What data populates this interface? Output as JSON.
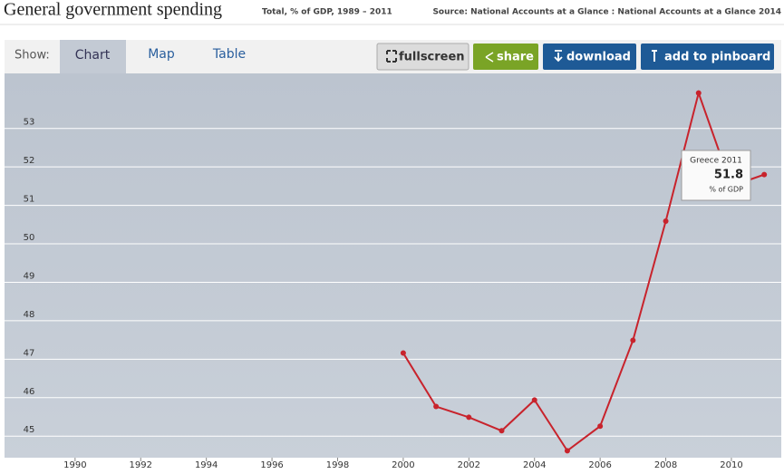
{
  "header": {
    "title": "General government spending",
    "subtitle": "Total, % of GDP, 1989 – 2011",
    "source": "Source: National Accounts at a Glance : National Accounts at a Glance 2014"
  },
  "tabs": {
    "label": "Show:",
    "items": [
      "Chart",
      "Map",
      "Table"
    ]
  },
  "buttons": [
    "fullscreen",
    "share",
    "download",
    "add to pinboard"
  ],
  "tooltip": {
    "label": "Greece 2011",
    "unit": "% of GDP"
  },
  "chart_data": {
    "type": "line",
    "color": "#c8232c",
    "x": [
      2000,
      2001,
      2002,
      2003,
      2004,
      2005,
      2006,
      2007,
      2008,
      2009,
      2010,
      2011
    ],
    "values": [
      47.16,
      45.77,
      45.49,
      45.14,
      45.94,
      44.62,
      45.26,
      47.49,
      50.59,
      53.92,
      51.5,
      51.8
    ],
    "xlim": [
      1987.85,
      2011.52
    ],
    "xticks": [
      1990,
      1992,
      1994,
      1996,
      1998,
      2000,
      2002,
      2004,
      2006,
      2008,
      2010
    ],
    "ylim": [
      44.44,
      54.43
    ],
    "yticks": [
      45,
      46,
      47,
      48,
      49,
      50,
      51,
      52,
      53
    ],
    "grid": true
  }
}
